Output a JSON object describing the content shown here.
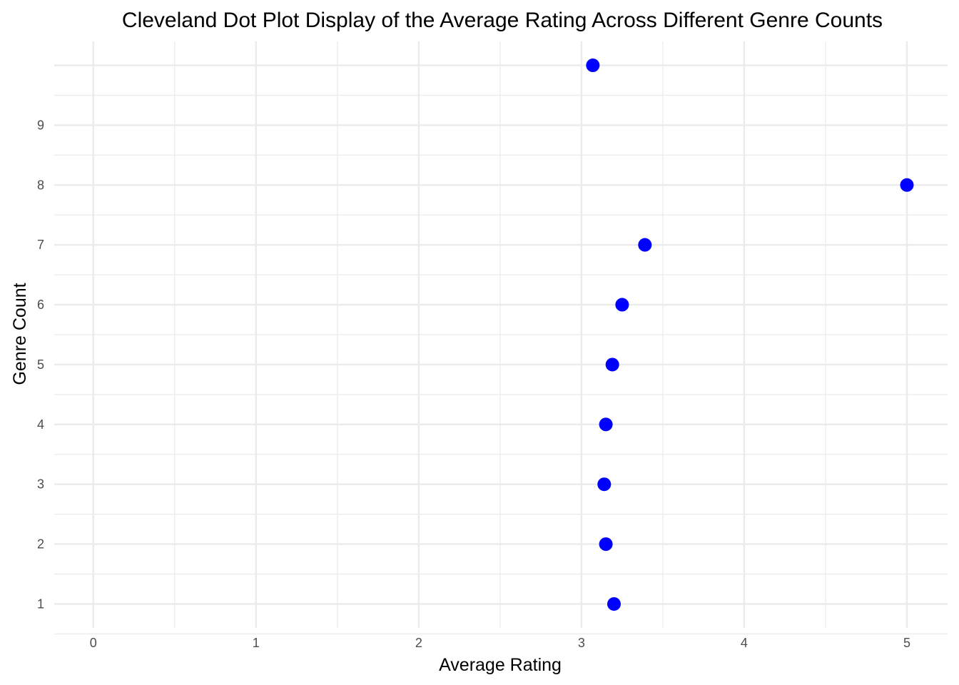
{
  "chart_data": {
    "type": "scatter",
    "title": "Cleveland Dot Plot Display of the Average Rating Across Different Genre Counts",
    "xlabel": "Average Rating",
    "ylabel": "Genre Count",
    "xlim": [
      -0.24,
      5.25
    ],
    "ylim": [
      0.6,
      10.4
    ],
    "x_ticks": [
      "0",
      "1",
      "2",
      "3",
      "4",
      "5"
    ],
    "y_ticks": [
      "1",
      "2",
      "3",
      "4",
      "5",
      "6",
      "7",
      "8",
      "9"
    ],
    "grid": true,
    "legend": "none",
    "point_color": "#0000ff",
    "points": [
      {
        "genre_count": 1,
        "average_rating": 3.2
      },
      {
        "genre_count": 2,
        "average_rating": 3.15
      },
      {
        "genre_count": 3,
        "average_rating": 3.14
      },
      {
        "genre_count": 4,
        "average_rating": 3.15
      },
      {
        "genre_count": 5,
        "average_rating": 3.19
      },
      {
        "genre_count": 6,
        "average_rating": 3.25
      },
      {
        "genre_count": 7,
        "average_rating": 3.39
      },
      {
        "genre_count": 8,
        "average_rating": 5.0
      },
      {
        "genre_count": 10,
        "average_rating": 3.07
      }
    ]
  }
}
